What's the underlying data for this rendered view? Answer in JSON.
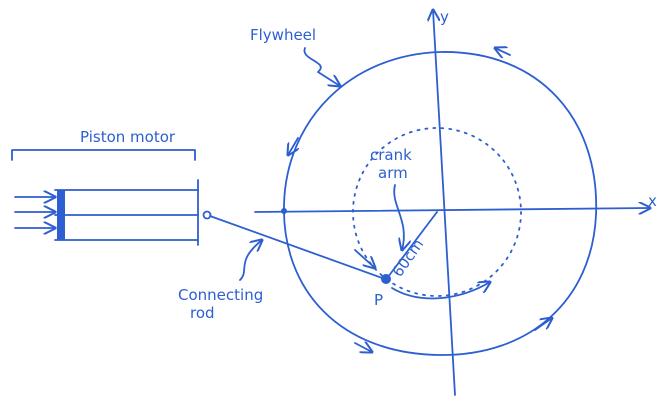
{
  "labels": {
    "flywheel": "Flywheel",
    "piston_motor": "Piston motor",
    "crank_arm": [
      "crank",
      "arm"
    ],
    "length": "60cm",
    "connecting_rod": [
      "Connecting",
      "rod"
    ],
    "point": "P",
    "y_axis": "y",
    "x_axis": "x"
  }
}
